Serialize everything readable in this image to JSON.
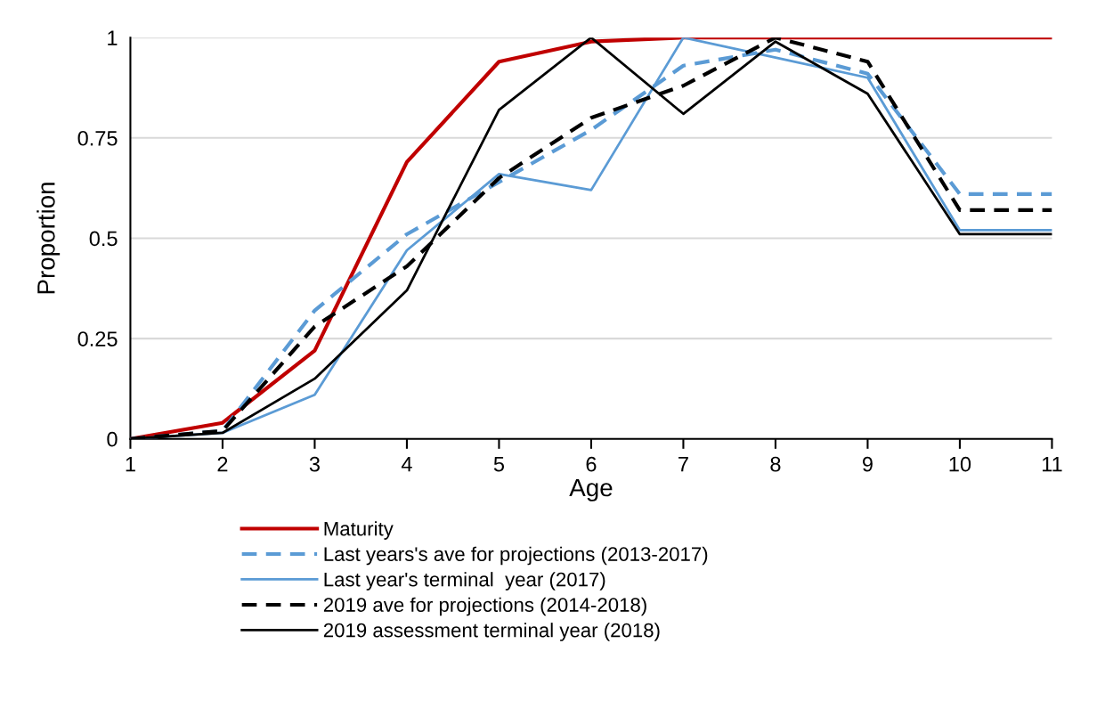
{
  "chart_data": {
    "type": "line",
    "xlabel": "Age",
    "ylabel": "Proportion",
    "x": [
      1,
      2,
      3,
      4,
      5,
      6,
      7,
      8,
      9,
      10,
      11
    ],
    "xlim": [
      1,
      11
    ],
    "xticks": [
      1,
      2,
      3,
      4,
      5,
      6,
      7,
      8,
      9,
      10,
      11
    ],
    "ylim": [
      0,
      1
    ],
    "yticks": [
      0,
      0.25,
      0.5,
      0.75,
      1
    ],
    "grid": "y",
    "legend": "bottom",
    "series": [
      {
        "name": "Maturity",
        "color": "#c00000",
        "line_style": "solid",
        "values": [
          0,
          0.04,
          0.22,
          0.69,
          0.94,
          0.99,
          1.0,
          1.0,
          1.0,
          1.0,
          1.0
        ]
      },
      {
        "name": "Last years's ave for projections (2013-2017)",
        "color": "#5b9bd5",
        "line_style": "dashed",
        "values": [
          0,
          0.02,
          0.32,
          0.51,
          0.64,
          0.77,
          0.93,
          0.97,
          0.91,
          0.61,
          0.61
        ]
      },
      {
        "name": "Last year's terminal  year (2017)",
        "color": "#5b9bd5",
        "line_style": "solid",
        "values": [
          0,
          0.015,
          0.11,
          0.47,
          0.66,
          0.62,
          1.0,
          0.95,
          0.9,
          0.52,
          0.52
        ]
      },
      {
        "name": "2019 ave for projections (2014-2018)",
        "color": "#000000",
        "line_style": "dashed",
        "values": [
          0,
          0.02,
          0.28,
          0.43,
          0.65,
          0.8,
          0.88,
          1.0,
          0.94,
          0.57,
          0.57
        ]
      },
      {
        "name": "2019 assessment terminal year (2018)",
        "color": "#000000",
        "line_style": "solid",
        "values": [
          0,
          0.015,
          0.15,
          0.37,
          0.82,
          1.0,
          0.81,
          0.99,
          0.86,
          0.51,
          0.51
        ]
      }
    ]
  }
}
